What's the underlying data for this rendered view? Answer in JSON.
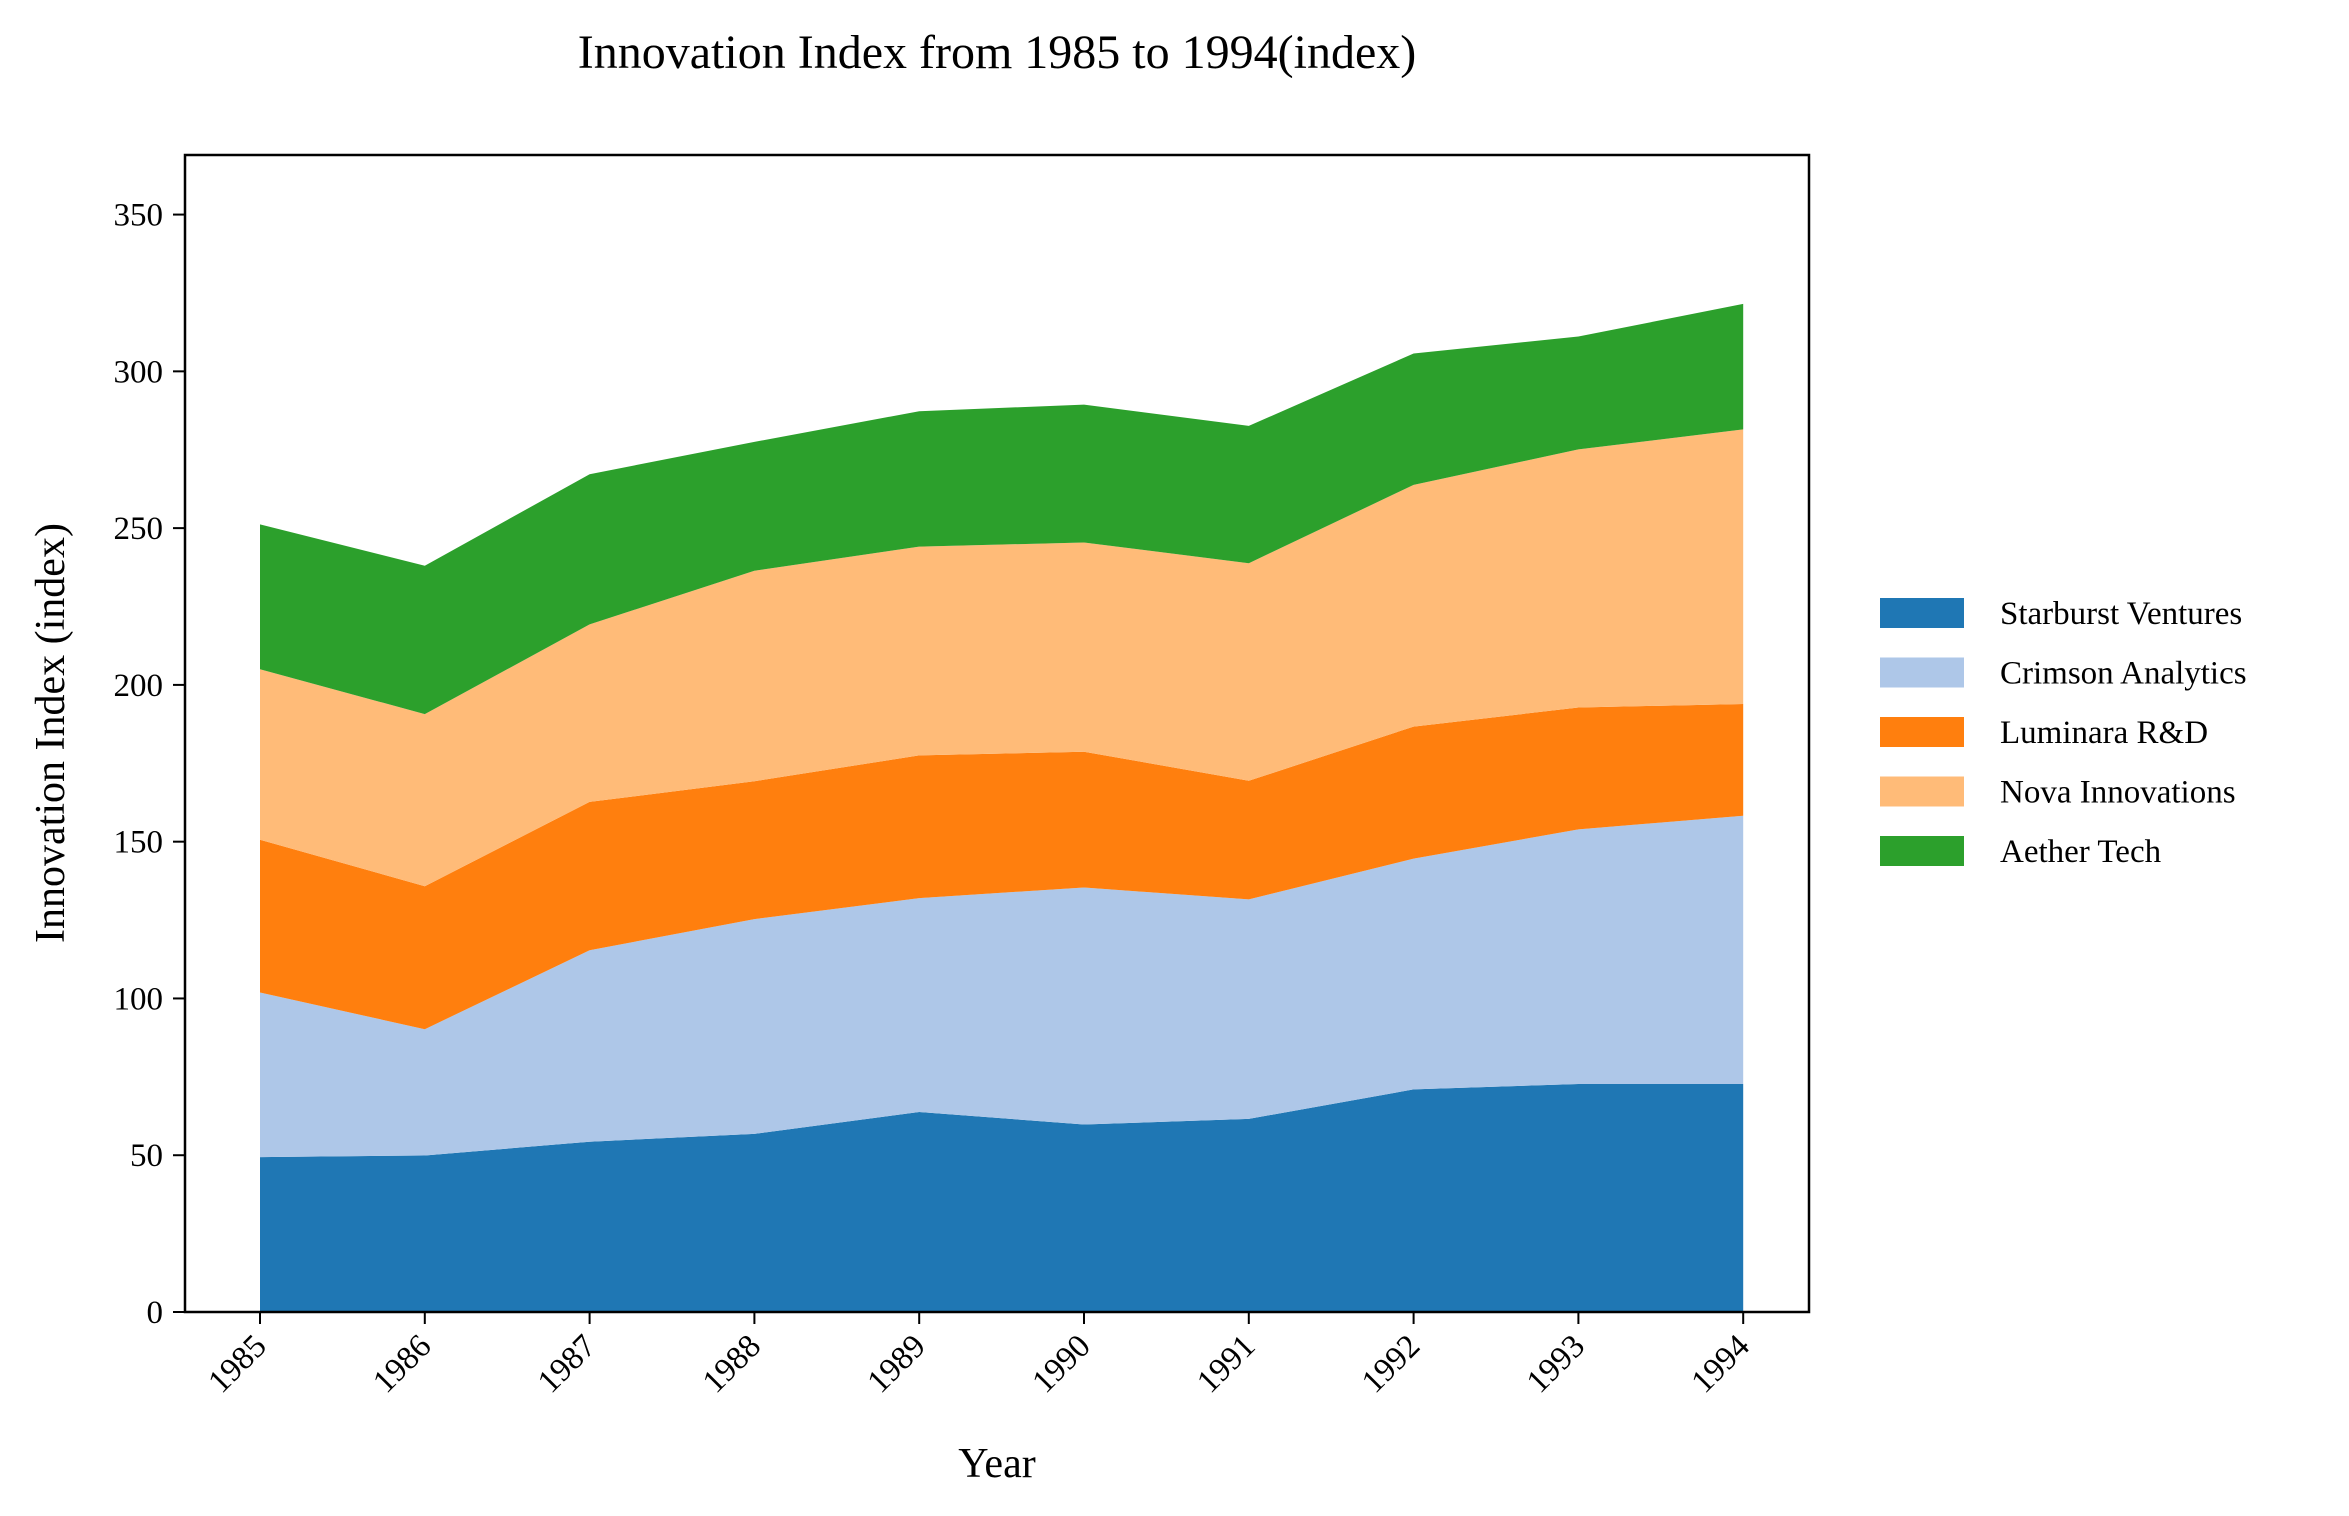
{
  "chart_data": {
    "type": "area",
    "stacked": true,
    "title": "Innovation Index from 1985 to 1994(index)",
    "xlabel": "Year",
    "ylabel": "Innovation Index (index)",
    "x": [
      "1985",
      "1986",
      "1987",
      "1988",
      "1989",
      "1990",
      "1991",
      "1992",
      "1993",
      "1994"
    ],
    "ylim": [
      0,
      369
    ],
    "yticks": [
      0,
      50,
      100,
      150,
      200,
      250,
      300,
      350
    ],
    "grid": false,
    "legend_position": "right",
    "series": [
      {
        "name": "Starburst Ventures",
        "color": "#1f77b4",
        "values": [
          49.4,
          49.9,
          54.3,
          56.8,
          63.8,
          59.8,
          61.6,
          71.0,
          72.7,
          72.7
        ]
      },
      {
        "name": "Crimson Analytics",
        "color": "#aec7e8",
        "values": [
          52.5,
          40.3,
          61.1,
          68.5,
          68.2,
          75.6,
          70.0,
          73.6,
          81.2,
          85.6
        ]
      },
      {
        "name": "Luminara R&D",
        "color": "#ff7f0e",
        "values": [
          48.7,
          45.6,
          47.3,
          44.0,
          45.5,
          43.3,
          37.8,
          42.1,
          38.9,
          35.6
        ]
      },
      {
        "name": "Nova Innovations",
        "color": "#ffbb78",
        "values": [
          54.4,
          54.9,
          56.6,
          67.1,
          66.6,
          66.7,
          69.4,
          77.1,
          82.3,
          87.6
        ]
      },
      {
        "name": "Aether Tech",
        "color": "#2ca02c",
        "values": [
          46.2,
          47.3,
          47.9,
          41.1,
          43.2,
          44.0,
          43.8,
          41.9,
          36.0,
          40.0
        ]
      }
    ]
  }
}
